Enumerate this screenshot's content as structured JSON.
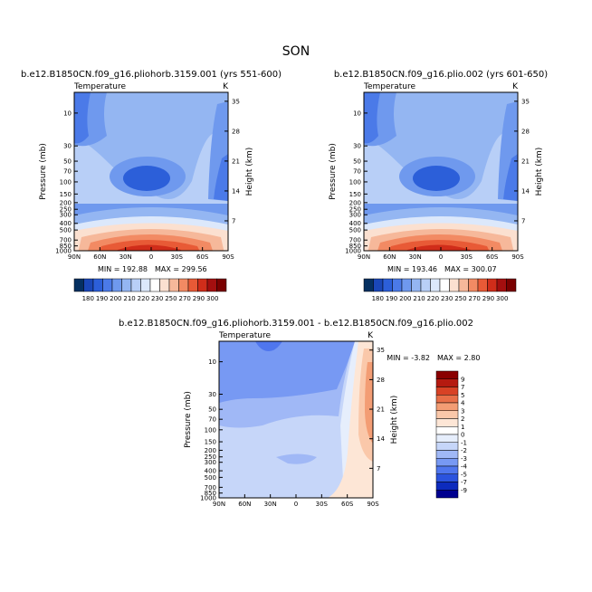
{
  "figure": {
    "title": "SON",
    "top_variable_label": "Temperature",
    "top_units_label": "K"
  },
  "colors": {
    "abs_palette": [
      "#053061",
      "#1a47b8",
      "#2c5fd9",
      "#4b7ae8",
      "#6f99ee",
      "#94b6f2",
      "#b8cff7",
      "#dce8fb",
      "#ffffff",
      "#fbe0d0",
      "#f6b89a",
      "#f28a63",
      "#e85a36",
      "#d02d1a",
      "#a40f0f",
      "#7a0000"
    ],
    "diff_palette": [
      "#00008f",
      "#0d2bbd",
      "#2b53de",
      "#4f76ee",
      "#7799f3",
      "#a0b8f6",
      "#c6d6f9",
      "#e6eefc",
      "#ffffff",
      "#fde6d6",
      "#fac8aa",
      "#f39d74",
      "#e86f48",
      "#d84225",
      "#b51a10",
      "#8a0000"
    ]
  },
  "chart_data": [
    {
      "type": "heatmap",
      "id": "left",
      "title": "b.e12.B1850CN.f09_g16.pliohorb.3159.001 (yrs 551-600)",
      "variable_label": "Temperature",
      "units_label": "K",
      "ylabel": "Pressure (mb)",
      "ylabel_right": "Height (km)",
      "x_ticks": [
        "90N",
        "60N",
        "30N",
        "0",
        "30S",
        "60S",
        "90S"
      ],
      "y_ticks": [
        "10",
        "30",
        "50",
        "70",
        "100",
        "150",
        "200",
        "250",
        "300",
        "400",
        "500",
        "700",
        "850",
        "1000"
      ],
      "y_ticks_right": [
        "35",
        "28",
        "21",
        "14",
        "7"
      ],
      "min_label": "MIN = 192.88",
      "max_label": "MAX = 299.56",
      "min": 192.88,
      "max": 299.56,
      "colorbar_labels": [
        "180",
        "190",
        "200",
        "210",
        "220",
        "230",
        "250",
        "270",
        "290",
        "300"
      ]
    },
    {
      "type": "heatmap",
      "id": "right",
      "title": "b.e12.B1850CN.f09_g16.plio.002 (yrs 601-650)",
      "variable_label": "Temperature",
      "units_label": "K",
      "ylabel": "Pressure (mb)",
      "ylabel_right": "Height (km)",
      "x_ticks": [
        "90N",
        "60N",
        "30N",
        "0",
        "30S",
        "60S",
        "90S"
      ],
      "y_ticks": [
        "10",
        "30",
        "50",
        "70",
        "100",
        "150",
        "200",
        "250",
        "300",
        "400",
        "500",
        "700",
        "850",
        "1000"
      ],
      "y_ticks_right": [
        "35",
        "28",
        "21",
        "14",
        "7"
      ],
      "min_label": "MIN = 193.46",
      "max_label": "MAX = 300.07",
      "min": 193.46,
      "max": 300.07,
      "colorbar_labels": [
        "180",
        "190",
        "200",
        "210",
        "220",
        "230",
        "250",
        "270",
        "290",
        "300"
      ]
    },
    {
      "type": "heatmap",
      "id": "diff",
      "title": "b.e12.B1850CN.f09_g16.pliohorb.3159.001 - b.e12.B1850CN.f09_g16.plio.002",
      "variable_label": "Temperature",
      "units_label": "K",
      "ylabel": "Pressure (mb)",
      "ylabel_right": "Height (km)",
      "x_ticks": [
        "90N",
        "60N",
        "30N",
        "0",
        "30S",
        "60S",
        "90S"
      ],
      "y_ticks": [
        "10",
        "30",
        "50",
        "70",
        "100",
        "150",
        "200",
        "250",
        "300",
        "400",
        "500",
        "700",
        "850",
        "1000"
      ],
      "y_ticks_right": [
        "35",
        "28",
        "21",
        "14",
        "7"
      ],
      "min_label": "MIN = -3.82",
      "max_label": "MAX = 2.80",
      "min": -3.82,
      "max": 2.8,
      "colorbar_labels": [
        "9",
        "7",
        "5",
        "4",
        "3",
        "2",
        "1",
        "0",
        "-1",
        "-2",
        "-3",
        "-4",
        "-5",
        "-7",
        "-9"
      ]
    }
  ]
}
